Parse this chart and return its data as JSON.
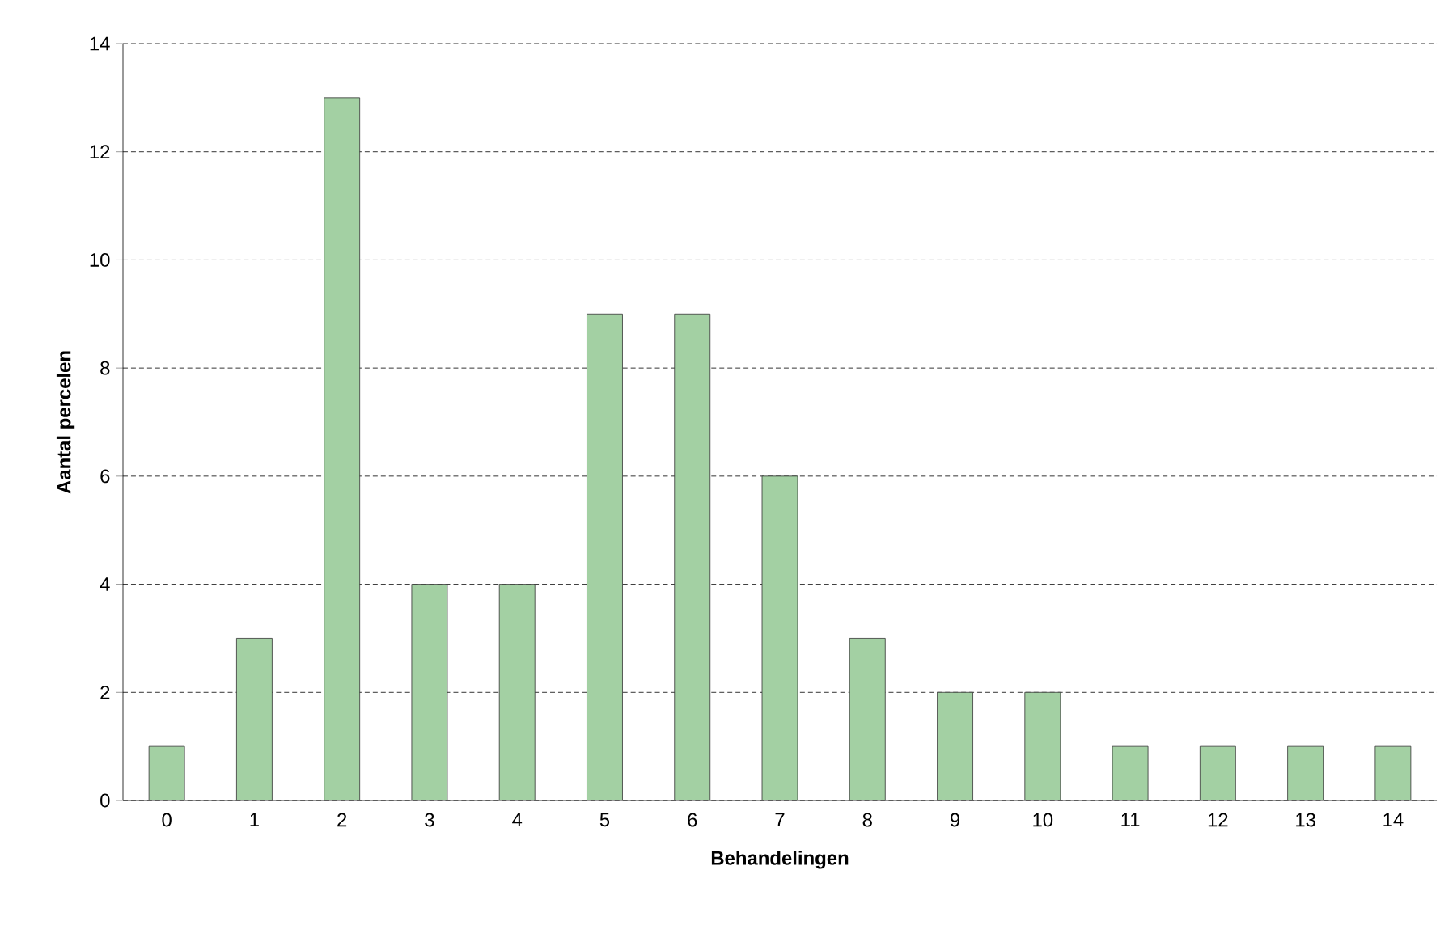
{
  "chart_data": {
    "type": "bar",
    "xlabel": "Behandelingen",
    "ylabel": "Aantal percelen",
    "categories": [
      "0",
      "1",
      "2",
      "3",
      "4",
      "5",
      "6",
      "7",
      "8",
      "9",
      "10",
      "11",
      "12",
      "13",
      "14"
    ],
    "values": [
      1,
      3,
      13,
      4,
      4,
      9,
      9,
      6,
      3,
      2,
      2,
      1,
      1,
      1,
      1
    ],
    "color": "#a3d0a3",
    "ylim": [
      0,
      14
    ],
    "yticks": [
      0,
      2,
      4,
      6,
      8,
      10,
      12,
      14
    ],
    "grid": "y"
  }
}
